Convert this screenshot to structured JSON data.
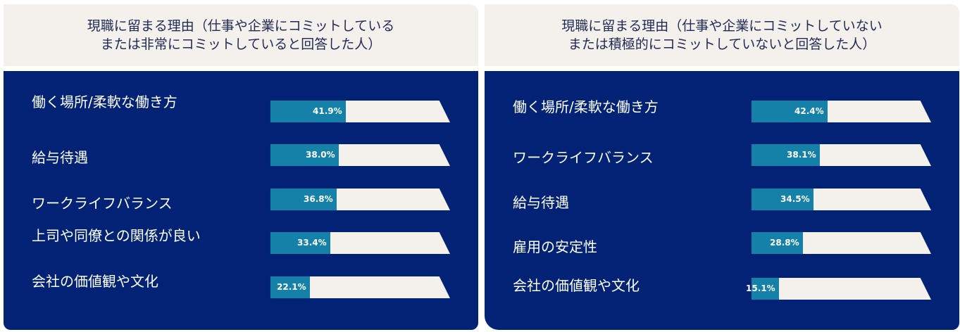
{
  "colors": {
    "header_bg": "#f4f0ec",
    "panel_bg": "#022375",
    "bar_fill": "#1681a8",
    "bar_track": "#f4f0ec"
  },
  "chart_data": [
    {
      "type": "bar",
      "title_lines": [
        "現職に留まる理由（仕事や企業にコミットしている",
        "または非常にコミットしていると回答した人）"
      ],
      "categories": [
        "働く場所/柔軟な働き方",
        "給与待遇",
        "ワークライフバランス",
        "上司や同僚との関係が良い",
        "会社の価値観や文化"
      ],
      "values": [
        41.9,
        38.0,
        36.8,
        33.4,
        22.1
      ],
      "value_labels": [
        "41.9%",
        "38.0%",
        "36.8%",
        "33.4%",
        "22.1%"
      ],
      "xlim": [
        0,
        100
      ]
    },
    {
      "type": "bar",
      "title_lines": [
        "現職に留まる理由（仕事や企業にコミットしていない",
        "または積極的にコミットしていないと回答した人）"
      ],
      "categories": [
        "働く場所/柔軟な働き方",
        "ワークライフバランス",
        "給与待遇",
        "雇用の安定性",
        "会社の価値観や文化"
      ],
      "values": [
        42.4,
        38.1,
        34.5,
        28.8,
        15.1
      ],
      "value_labels": [
        "42.4%",
        "38.1%",
        "34.5%",
        "28.8%",
        "15.1%"
      ],
      "xlim": [
        0,
        100
      ]
    }
  ]
}
